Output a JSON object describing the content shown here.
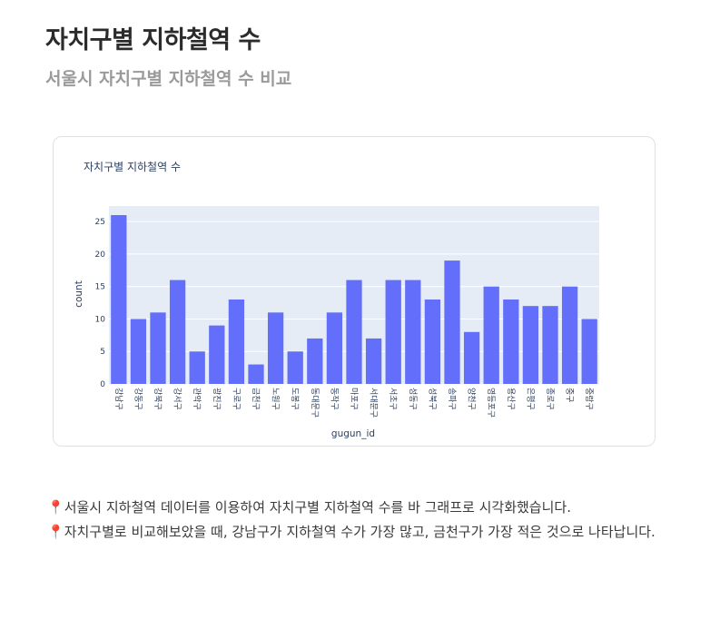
{
  "page": {
    "title": "자치구별 지하철역 수",
    "subtitle": "서울시 자치구별 지하철역 수 비교"
  },
  "description": {
    "pin_icon": "📍",
    "lines": [
      "서울시 지하철역 데이터를 이용하여 자치구별 지하철역 수를 바 그래프로 시각화했습니다.",
      "자치구별로 비교해보았을 때, 강남구가 지하철역 수가 가장 많고, 금천구가 가장 적은 것으로 나타납니다."
    ]
  },
  "chart_data": {
    "type": "bar",
    "title": "자치구별 지하철역 수",
    "xlabel": "gugun_id",
    "ylabel": "count",
    "ylim": [
      0,
      27.4
    ],
    "yticks": [
      0,
      5,
      10,
      15,
      20,
      25
    ],
    "grid": true,
    "bar_color": "#636efa",
    "plot_bg": "#e5ecf6",
    "categories": [
      "강남구",
      "강동구",
      "강북구",
      "강서구",
      "관악구",
      "광진구",
      "구로구",
      "금천구",
      "노원구",
      "도봉구",
      "동대문구",
      "동작구",
      "마포구",
      "서대문구",
      "서초구",
      "성동구",
      "성북구",
      "송파구",
      "양천구",
      "영등포구",
      "용산구",
      "은평구",
      "종로구",
      "중구",
      "중랑구"
    ],
    "values": [
      26,
      10,
      11,
      16,
      5,
      9,
      13,
      3,
      11,
      5,
      7,
      11,
      16,
      7,
      16,
      16,
      13,
      19,
      8,
      15,
      13,
      12,
      12,
      15,
      10
    ]
  }
}
